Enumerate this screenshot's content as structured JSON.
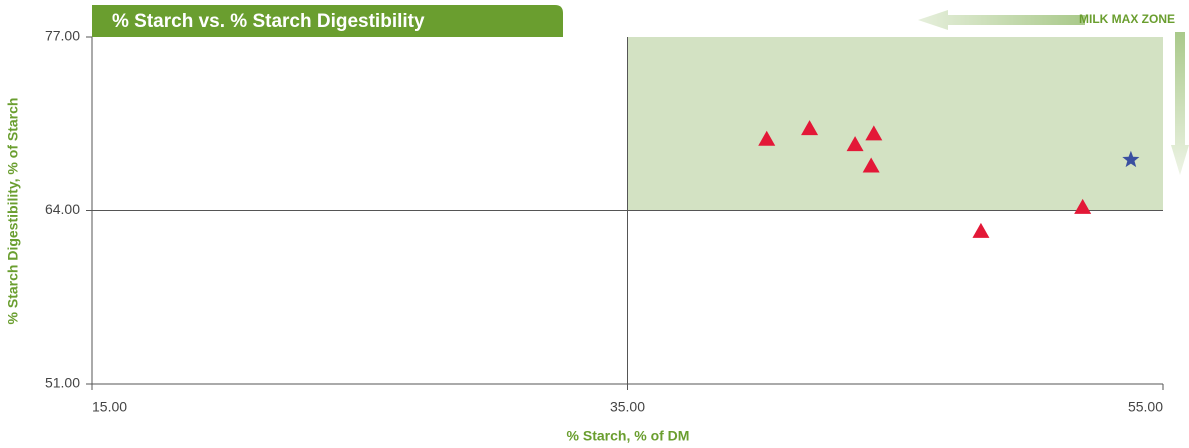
{
  "chart_data": {
    "type": "scatter",
    "title": "% Starch vs. % Starch Digestibility",
    "x_label": "% Starch, % of DM",
    "y_label": "% Starch Digestibility, % of Starch",
    "annotation": "MILK MAX ZONE",
    "zone": {
      "x": [
        35,
        55
      ],
      "y": [
        64,
        77
      ],
      "color": "#d3e2c3"
    },
    "xlim": [
      15,
      55
    ],
    "ylim": [
      51,
      77
    ],
    "xticks": [
      {
        "value": 15,
        "label": "15.00"
      },
      {
        "value": 35,
        "label": "35.00"
      },
      {
        "value": 55,
        "label": "55.00"
      }
    ],
    "yticks": [
      {
        "value": 51,
        "label": "51.00"
      },
      {
        "value": 64,
        "label": "64.00"
      },
      {
        "value": 77,
        "label": "77.00"
      }
    ],
    "series": [
      {
        "marker": "triangle",
        "color": "#e31837",
        "x": [
          40.2,
          41.8,
          43.5,
          44.2,
          44.1,
          48.2,
          52.0
        ],
        "values": [
          69.3,
          70.1,
          68.9,
          69.7,
          67.3,
          62.4,
          64.2
        ]
      },
      {
        "marker": "star",
        "color": "#3a4fa0",
        "x": [
          53.8
        ],
        "values": [
          67.8
        ]
      }
    ]
  }
}
